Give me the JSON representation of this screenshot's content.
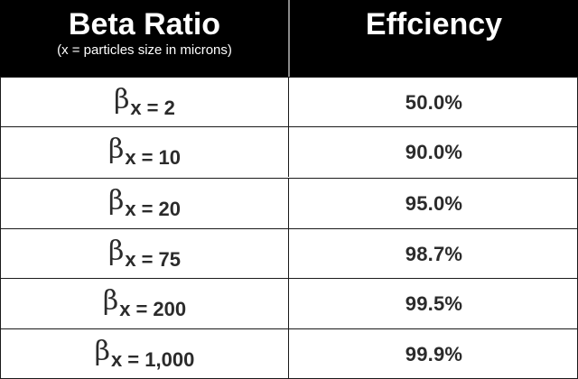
{
  "header": {
    "col1_title": "Beta Ratio",
    "col1_subtitle": "(x = particles size in microns)",
    "col2_title": "Effciency"
  },
  "symbol": {
    "beta": "β",
    "subscript": "x",
    "equals": "="
  },
  "rows": [
    {
      "beta_value": "2",
      "efficiency": "50.0%"
    },
    {
      "beta_value": "10",
      "efficiency": "90.0%"
    },
    {
      "beta_value": "20",
      "efficiency": "95.0%"
    },
    {
      "beta_value": "75",
      "efficiency": "98.7%"
    },
    {
      "beta_value": "200",
      "efficiency": "99.5%"
    },
    {
      "beta_value": "1,000",
      "efficiency": "99.9%"
    }
  ],
  "colors": {
    "header_bg": "#000000",
    "header_text": "#ffffff",
    "body_text": "#2b2b2b",
    "grid": "#1a1a1a"
  }
}
